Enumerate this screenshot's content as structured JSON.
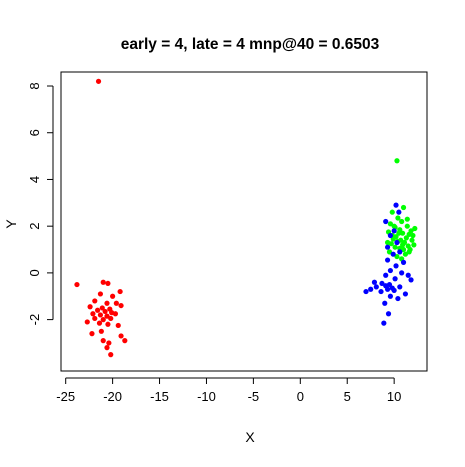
{
  "chart_data": {
    "type": "scatter",
    "title": "early = 4, late = 4 mnp@40 = 0.6503",
    "xlabel": "X",
    "ylabel": "Y",
    "xlim": [
      -25.5,
      13.5
    ],
    "ylim": [
      -4.2,
      8.6
    ],
    "x_ticks": [
      -25,
      -20,
      -15,
      -10,
      -5,
      0,
      5,
      10
    ],
    "y_ticks": [
      -2,
      0,
      2,
      4,
      6,
      8
    ],
    "x_tick_labels": [
      "-25",
      "-20",
      "-15",
      "-10",
      "-5",
      "0",
      "5",
      "10"
    ],
    "y_tick_labels": [
      "-2",
      "0",
      "2",
      "4",
      "6",
      "8"
    ],
    "grid": false,
    "series": [
      {
        "color": "#ff0000",
        "points": [
          [
            -21.5,
            8.2
          ],
          [
            -23.8,
            -0.5
          ],
          [
            -21.0,
            -0.4
          ],
          [
            -20.5,
            -0.45
          ],
          [
            -19.2,
            -0.8
          ],
          [
            -21.3,
            -0.9
          ],
          [
            -20.0,
            -1.0
          ],
          [
            -21.9,
            -1.2
          ],
          [
            -20.6,
            -1.3
          ],
          [
            -19.6,
            -1.3
          ],
          [
            -22.4,
            -1.45
          ],
          [
            -21.1,
            -1.5
          ],
          [
            -20.3,
            -1.55
          ],
          [
            -19.1,
            -1.4
          ],
          [
            -21.6,
            -1.6
          ],
          [
            -20.8,
            -1.65
          ],
          [
            -20.1,
            -1.7
          ],
          [
            -22.1,
            -1.75
          ],
          [
            -21.3,
            -1.8
          ],
          [
            -20.6,
            -1.85
          ],
          [
            -19.7,
            -1.75
          ],
          [
            -21.9,
            -1.95
          ],
          [
            -21.0,
            -2.0
          ],
          [
            -20.2,
            -1.95
          ],
          [
            -22.7,
            -2.1
          ],
          [
            -21.4,
            -2.15
          ],
          [
            -20.5,
            -2.2
          ],
          [
            -19.4,
            -2.25
          ],
          [
            -21.2,
            -2.5
          ],
          [
            -22.2,
            -2.6
          ],
          [
            -19.1,
            -2.7
          ],
          [
            -21.0,
            -2.9
          ],
          [
            -20.4,
            -3.0
          ],
          [
            -18.7,
            -2.9
          ],
          [
            -20.6,
            -3.2
          ],
          [
            -20.2,
            -3.5
          ]
        ]
      },
      {
        "color": "#00ff00",
        "points": [
          [
            10.3,
            4.8
          ],
          [
            11.0,
            2.8
          ],
          [
            9.8,
            2.6
          ],
          [
            10.4,
            2.35
          ],
          [
            10.8,
            2.2
          ],
          [
            9.6,
            2.1
          ],
          [
            11.4,
            2.0
          ],
          [
            10.1,
            1.95
          ],
          [
            12.2,
            1.9
          ],
          [
            10.6,
            1.85
          ],
          [
            11.8,
            1.8
          ],
          [
            9.4,
            1.75
          ],
          [
            10.9,
            1.7
          ],
          [
            11.6,
            1.65
          ],
          [
            12.0,
            1.6
          ],
          [
            10.2,
            1.55
          ],
          [
            11.3,
            1.5
          ],
          [
            9.9,
            1.45
          ],
          [
            10.7,
            1.4
          ],
          [
            11.9,
            1.4
          ],
          [
            10.4,
            1.35
          ],
          [
            11.1,
            1.3
          ],
          [
            9.7,
            1.25
          ],
          [
            10.9,
            1.2
          ],
          [
            11.5,
            1.15
          ],
          [
            10.1,
            1.1
          ],
          [
            10.6,
            1.05
          ],
          [
            11.0,
            1.0
          ],
          [
            9.5,
            0.9
          ],
          [
            11.2,
            0.8
          ],
          [
            10.3,
            0.7
          ],
          [
            10.8,
            0.6
          ],
          [
            11.7,
            1.0
          ],
          [
            9.8,
            1.6
          ],
          [
            12.1,
            1.2
          ],
          [
            11.4,
            2.3
          ],
          [
            10.0,
            2.0
          ],
          [
            10.5,
            1.7
          ],
          [
            11.6,
            0.9
          ],
          [
            9.3,
            1.3
          ]
        ]
      },
      {
        "color": "#0000ff",
        "points": [
          [
            10.2,
            2.9
          ],
          [
            10.5,
            2.6
          ],
          [
            9.1,
            2.2
          ],
          [
            10.0,
            1.8
          ],
          [
            9.6,
            1.6
          ],
          [
            10.3,
            1.3
          ],
          [
            9.3,
            1.1
          ],
          [
            10.6,
            0.9
          ],
          [
            9.9,
            0.8
          ],
          [
            9.3,
            0.55
          ],
          [
            11.0,
            0.45
          ],
          [
            10.2,
            0.3
          ],
          [
            9.6,
            0.1
          ],
          [
            10.8,
            0.0
          ],
          [
            9.1,
            -0.1
          ],
          [
            10.1,
            -0.25
          ],
          [
            11.8,
            -0.3
          ],
          [
            7.9,
            -0.4
          ],
          [
            8.7,
            -0.45
          ],
          [
            9.5,
            -0.5
          ],
          [
            8.1,
            -0.6
          ],
          [
            9.1,
            -0.55
          ],
          [
            9.8,
            -0.65
          ],
          [
            10.6,
            -0.6
          ],
          [
            7.5,
            -0.7
          ],
          [
            9.3,
            -0.7
          ],
          [
            10.0,
            -0.75
          ],
          [
            8.6,
            -0.8
          ],
          [
            7.0,
            -0.8
          ],
          [
            11.2,
            -0.9
          ],
          [
            9.6,
            -1.0
          ],
          [
            10.4,
            -1.1
          ],
          [
            9.0,
            -1.3
          ],
          [
            9.4,
            -1.75
          ],
          [
            8.9,
            -2.15
          ],
          [
            11.5,
            -0.1
          ]
        ]
      }
    ]
  }
}
